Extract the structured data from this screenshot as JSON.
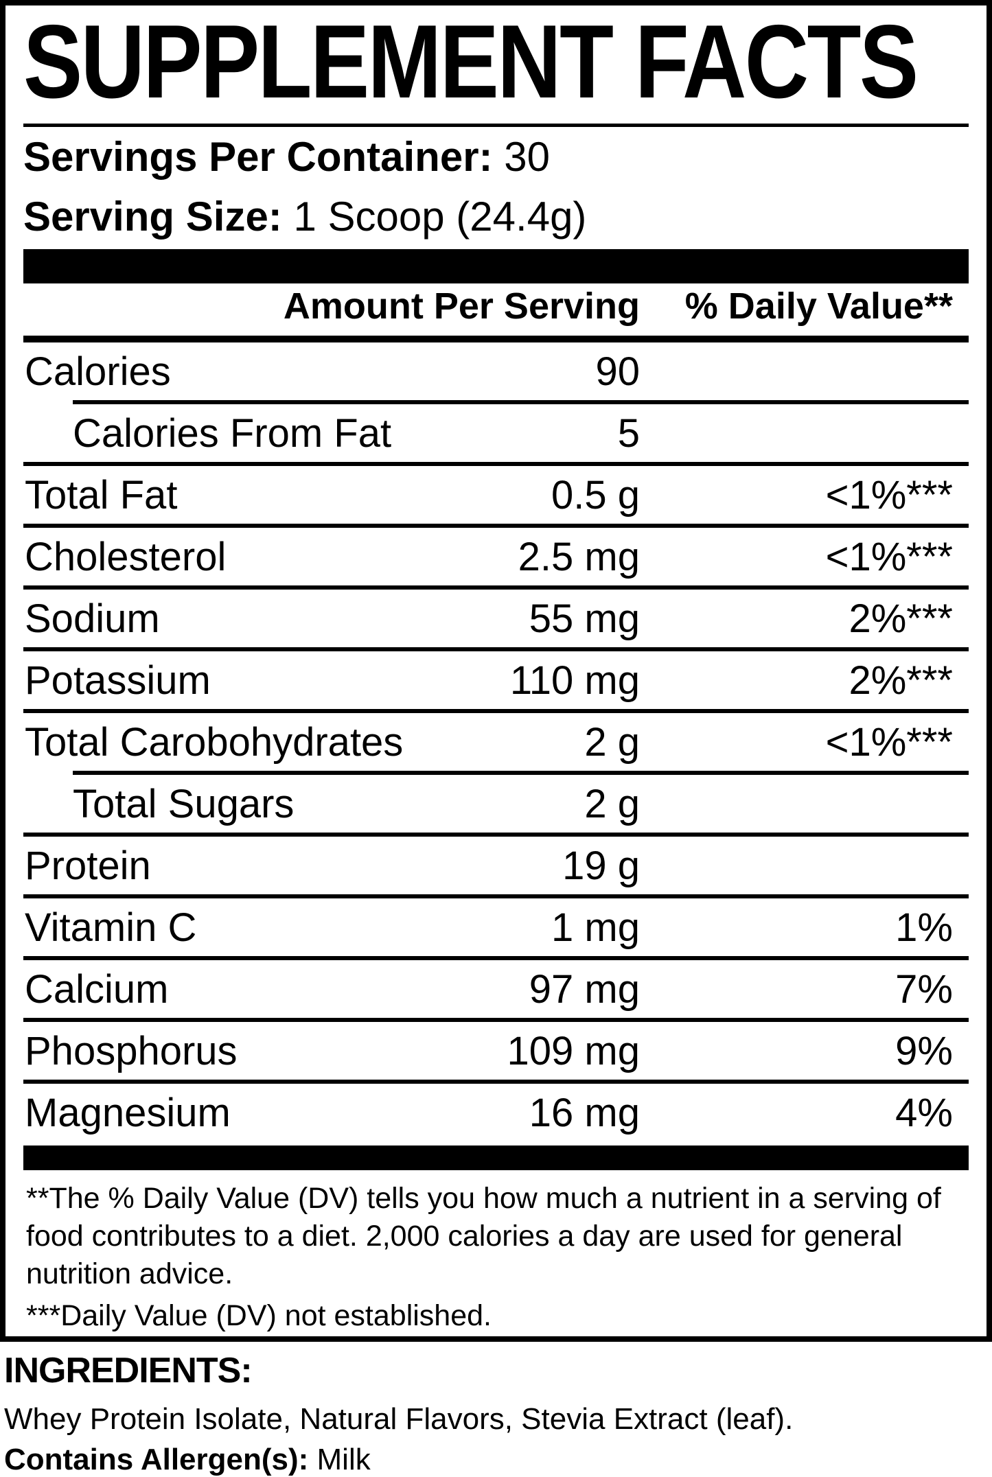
{
  "colors": {
    "foreground": "#000000",
    "background": "#ffffff"
  },
  "title": "SUPPLEMENT FACTS",
  "serving_info": {
    "servings_per_container_label": "Servings Per Container:",
    "servings_per_container_value": "30",
    "serving_size_label": "Serving Size:",
    "serving_size_value": "1 Scoop (24.4g)"
  },
  "table": {
    "header": {
      "amount": "Amount Per Serving",
      "daily_value": "% Daily Value**"
    },
    "rows": [
      {
        "name": "Calories",
        "amount": "90",
        "dv": "",
        "indent": false,
        "sep_after": "indent"
      },
      {
        "name": "Calories From Fat",
        "amount": "5",
        "dv": "",
        "indent": true,
        "sep_after": "full"
      },
      {
        "name": "Total Fat",
        "amount": "0.5 g",
        "dv": "<1%***",
        "indent": false,
        "sep_after": "full"
      },
      {
        "name": "Cholesterol",
        "amount": "2.5 mg",
        "dv": "<1%***",
        "indent": false,
        "sep_after": "full"
      },
      {
        "name": "Sodium",
        "amount": "55 mg",
        "dv": "2%***",
        "indent": false,
        "sep_after": "full"
      },
      {
        "name": "Potassium",
        "amount": "110 mg",
        "dv": "2%***",
        "indent": false,
        "sep_after": "full"
      },
      {
        "name": "Total Carobohydrates",
        "amount": "2 g",
        "dv": "<1%***",
        "indent": false,
        "sep_after": "indent"
      },
      {
        "name": "Total Sugars",
        "amount": "2 g",
        "dv": "",
        "indent": true,
        "sep_after": "full"
      },
      {
        "name": "Protein",
        "amount": "19 g",
        "dv": "",
        "indent": false,
        "sep_after": "full"
      },
      {
        "name": "Vitamin C",
        "amount": "1 mg",
        "dv": "1%",
        "indent": false,
        "sep_after": "full"
      },
      {
        "name": "Calcium",
        "amount": "97 mg",
        "dv": "7%",
        "indent": false,
        "sep_after": "full"
      },
      {
        "name": "Phosphorus",
        "amount": "109 mg",
        "dv": "9%",
        "indent": false,
        "sep_after": "full"
      },
      {
        "name": "Magnesium",
        "amount": "16 mg",
        "dv": "4%",
        "indent": false,
        "sep_after": "none"
      }
    ]
  },
  "footnotes": {
    "daily_value_note": "**The % Daily Value (DV) tells you how much a nutrient in a serving of food contributes to a diet. 2,000 calories a day are used for general nutrition advice.",
    "not_established_note": "***Daily Value (DV) not established."
  },
  "ingredients": {
    "heading": "INGREDIENTS:",
    "list": "Whey Protein Isolate, Natural Flavors, Stevia Extract (leaf).",
    "allergen_label": "Contains Allergen(s):",
    "allergen_value": "Milk"
  }
}
